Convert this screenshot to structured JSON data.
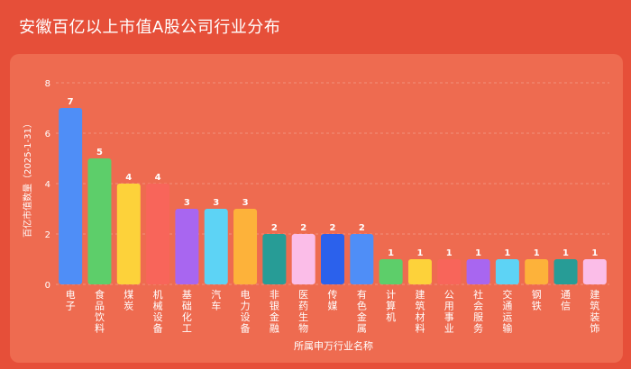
{
  "title": "安徽百亿以上市值A股公司行业分布",
  "chart_data": {
    "type": "bar",
    "xlabel": "所属申万行业名称",
    "ylabel": "百亿市值数量（2025-1-31）",
    "ylim": [
      0,
      8
    ],
    "yticks": [
      0,
      2,
      4,
      6,
      8
    ],
    "grid": true,
    "categories": [
      "电子",
      "食品饮料",
      "煤炭",
      "机械设备",
      "基础化工",
      "汽车",
      "电力设备",
      "非银金融",
      "医药生物",
      "传媒",
      "有色金属",
      "计算机",
      "建筑材料",
      "公用事业",
      "社会服务",
      "交通运输",
      "钢铁",
      "通信",
      "建筑装饰"
    ],
    "values": [
      7,
      5,
      4,
      4,
      3,
      3,
      3,
      2,
      2,
      2,
      2,
      1,
      1,
      1,
      1,
      1,
      1,
      1,
      1
    ],
    "colors": [
      "#4f8ef7",
      "#5dce6a",
      "#fdd23a",
      "#f8655a",
      "#a866f0",
      "#5dd3f5",
      "#fdb23a",
      "#279c96",
      "#fbbde8",
      "#2b61ec",
      "#4f8ef7",
      "#5dce6a",
      "#fdd23a",
      "#f8655a",
      "#a866f0",
      "#5dd3f5",
      "#fdb23a",
      "#279c96",
      "#fbbde8"
    ]
  }
}
